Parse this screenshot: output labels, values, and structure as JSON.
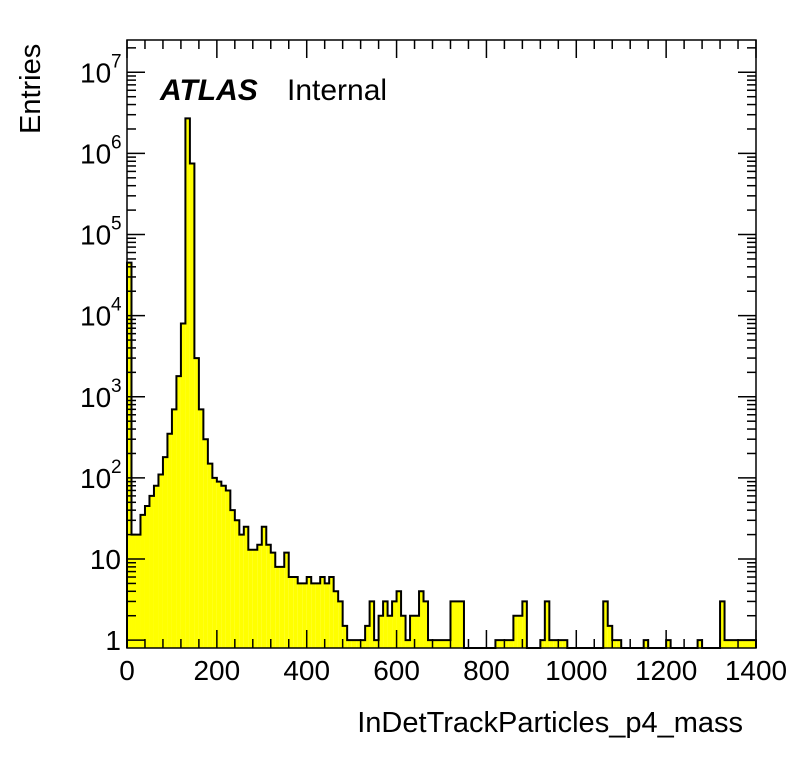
{
  "chart_data": {
    "type": "bar",
    "title": "",
    "xlabel": "InDetTrackParticles_p4_mass",
    "ylabel": "Entries",
    "annotation": {
      "experiment": "ATLAS",
      "status": "Internal"
    },
    "xlim": [
      0,
      1400
    ],
    "ylim": [
      0.8,
      25000000
    ],
    "yscale": "log",
    "fill_color": "#ffff00",
    "edge_color": "#000000",
    "bin_width": 10,
    "x_ticks": [
      0,
      200,
      400,
      600,
      800,
      1000,
      1200,
      1400
    ],
    "y_ticks": [
      {
        "value": 1,
        "base": "1",
        "exp": ""
      },
      {
        "value": 10,
        "base": "10",
        "exp": ""
      },
      {
        "value": 100,
        "base": "10",
        "exp": "2"
      },
      {
        "value": 1000,
        "base": "10",
        "exp": "3"
      },
      {
        "value": 10000,
        "base": "10",
        "exp": "4"
      },
      {
        "value": 100000,
        "base": "10",
        "exp": "5"
      },
      {
        "value": 1000000,
        "base": "10",
        "exp": "6"
      },
      {
        "value": 10000000,
        "base": "10",
        "exp": "7"
      }
    ],
    "values": [
      45000,
      20,
      20,
      35,
      45,
      60,
      80,
      110,
      180,
      350,
      700,
      1800,
      8000,
      2700000,
      750000,
      3000,
      700,
      300,
      150,
      100,
      90,
      80,
      70,
      40,
      30,
      20,
      25,
      13,
      13,
      15,
      25,
      15,
      12,
      8,
      8,
      12,
      6,
      6,
      5,
      5,
      6,
      5,
      5,
      6,
      5,
      6,
      4,
      3,
      1.5,
      1,
      1,
      1,
      1,
      1.5,
      3,
      1,
      2,
      3,
      2,
      3,
      4,
      2,
      1,
      2,
      2,
      4,
      3,
      1,
      1,
      1,
      1,
      1,
      3,
      3,
      3,
      0,
      0,
      0,
      0,
      0,
      0,
      0,
      1,
      1,
      1,
      1,
      2,
      2,
      3,
      0,
      0,
      0,
      1,
      3,
      1,
      1,
      1,
      1,
      0,
      0,
      0,
      0,
      0,
      0,
      0,
      0,
      3,
      1.5,
      1,
      1,
      0,
      0,
      0,
      0,
      0,
      1,
      0,
      0,
      0,
      0,
      1,
      0,
      0,
      0,
      0,
      0,
      0,
      1,
      0,
      0,
      0,
      0,
      3,
      1,
      1,
      1,
      1,
      1,
      1,
      1
    ]
  }
}
